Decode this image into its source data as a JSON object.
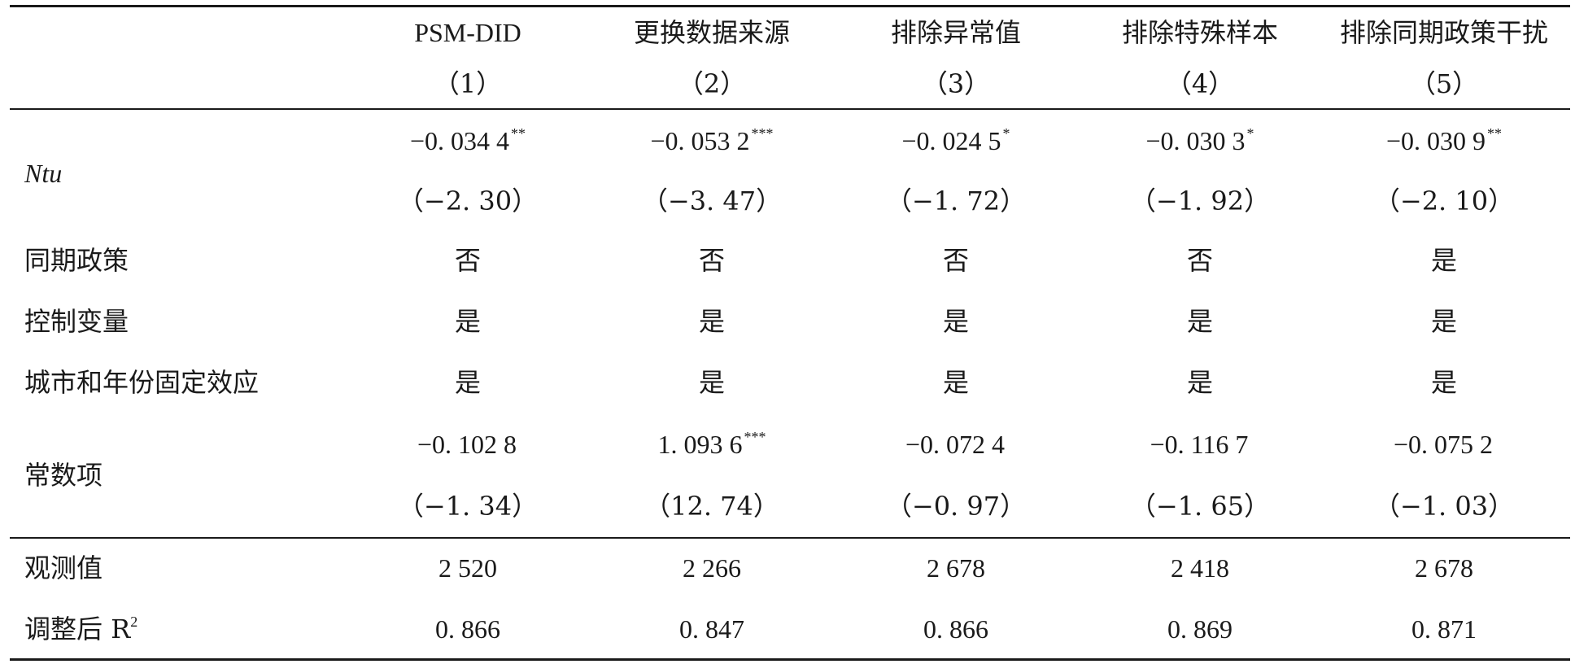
{
  "table": {
    "headers": [
      "PSM-DID",
      "更换数据来源",
      "排除异常值",
      "排除特殊样本",
      "排除同期政策干扰"
    ],
    "col_numbers": [
      "（1）",
      "（2）",
      "（3）",
      "（4）",
      "（5）"
    ],
    "ntu": {
      "label": "Ntu",
      "coef": [
        "−0. 034 4",
        "−0. 053 2",
        "−0. 024 5",
        "−0. 030 3",
        "−0. 030 9"
      ],
      "stars": [
        "**",
        "***",
        "*",
        "*",
        "**"
      ],
      "t": [
        "（−2. 30）",
        "（−3. 47）",
        "（−1. 72）",
        "（−1. 92）",
        "（−2. 10）"
      ]
    },
    "policy": {
      "label": "同期政策",
      "values": [
        "否",
        "否",
        "否",
        "否",
        "是"
      ]
    },
    "controls": {
      "label": "控制变量",
      "values": [
        "是",
        "是",
        "是",
        "是",
        "是"
      ]
    },
    "fixed": {
      "label": "城市和年份固定效应",
      "values": [
        "是",
        "是",
        "是",
        "是",
        "是"
      ]
    },
    "const": {
      "label": "常数项",
      "coef": [
        "−0. 102 8",
        "1. 093 6",
        "−0. 072 4",
        "−0. 116 7",
        "−0. 075 2"
      ],
      "stars": [
        "",
        "***",
        "",
        "",
        ""
      ],
      "t": [
        "（−1. 34）",
        "（12. 74）",
        "（−0. 97）",
        "（−1. 65）",
        "（−1. 03）"
      ]
    },
    "obs": {
      "label": "观测值",
      "values": [
        "2 520",
        "2 266",
        "2 678",
        "2 418",
        "2 678"
      ]
    },
    "r2": {
      "label": "调整后 R",
      "label_sup": "2",
      "values": [
        "0. 866",
        "0. 847",
        "0. 866",
        "0. 869",
        "0. 871"
      ]
    }
  }
}
